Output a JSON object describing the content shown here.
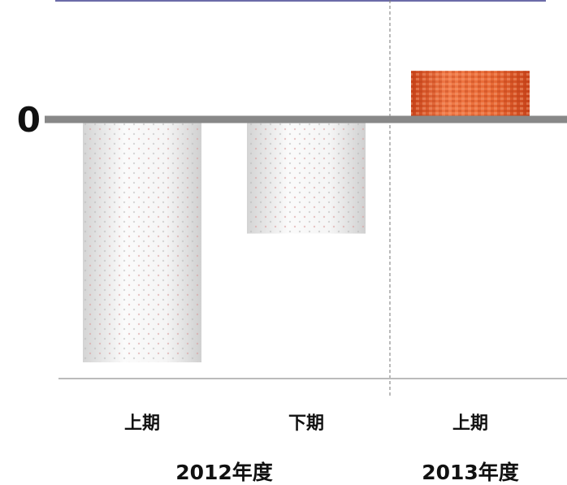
{
  "chart_data": {
    "type": "bar",
    "title": "",
    "xlabel": "",
    "ylabel": "",
    "categories": [
      "上期",
      "下期",
      "上期"
    ],
    "groups": [
      {
        "label": "2012年度",
        "categories": [
          0,
          1
        ]
      },
      {
        "label": "2013年度",
        "categories": [
          2
        ]
      }
    ],
    "values": [
      -100,
      -47,
      20
    ],
    "ylim": [
      -107,
      48
    ],
    "yticks": [
      {
        "value": 0,
        "label": "0"
      }
    ],
    "grid": false,
    "legend": "none",
    "colors": {
      "negative_bar": "#e6e6e6",
      "negative_dot": "#d99a9a",
      "positive_bar": "#e0592a",
      "positive_highlight": "#f28a5a",
      "zero_line": "#888888",
      "top_border": "#3a3a8c",
      "divider": "#777777",
      "baseline": "#bbbbbb"
    }
  }
}
